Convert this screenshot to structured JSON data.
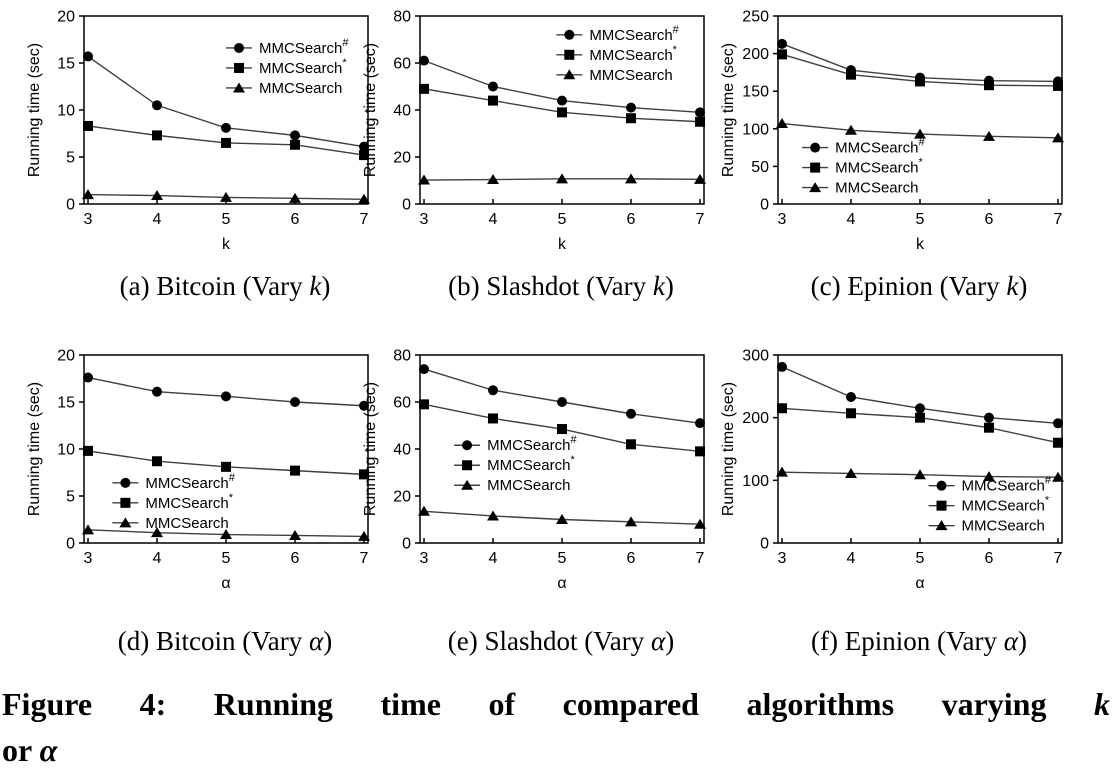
{
  "figure": {
    "title": {
      "line1_text": "Figure 4: Running time of compared algorithms varying",
      "line1_var": "k",
      "line2_text": "or",
      "line2_var": "α"
    }
  },
  "colors": {
    "line": "#3f3f3f",
    "marker": "#000000",
    "text": "#000000",
    "background": "#ffffff"
  },
  "chart_data": [
    {
      "id": "a",
      "type": "line",
      "caption": {
        "pre": "(a) Bitcoin (Vary ",
        "var": "k",
        "post": ")"
      },
      "xlabel": "k",
      "ylabel": "Running time (sec)",
      "x": [
        3,
        4,
        5,
        6,
        7
      ],
      "ylim": [
        0,
        20
      ],
      "yticks": [
        0,
        5,
        10,
        15,
        20
      ],
      "grid": false,
      "legend": {
        "position": "top-right",
        "fx": 0.5,
        "fy": 0.17
      },
      "series": [
        {
          "name": "MMCSearch#",
          "marker": "circle",
          "values": [
            15.7,
            10.5,
            8.1,
            7.3,
            6.1
          ]
        },
        {
          "name": "MMCSearch*",
          "marker": "square",
          "values": [
            8.3,
            7.3,
            6.5,
            6.3,
            5.2
          ]
        },
        {
          "name": "MMCSearch",
          "marker": "triangle",
          "values": [
            1.0,
            0.9,
            0.7,
            0.6,
            0.5
          ]
        }
      ]
    },
    {
      "id": "b",
      "type": "line",
      "caption": {
        "pre": "(b) Slashdot (Vary ",
        "var": "k",
        "post": ")"
      },
      "xlabel": "k",
      "ylabel": "Running time (sec)",
      "x": [
        3,
        4,
        5,
        6,
        7
      ],
      "ylim": [
        0,
        80
      ],
      "yticks": [
        0,
        20,
        40,
        60,
        80
      ],
      "grid": false,
      "legend": {
        "position": "top-right",
        "fx": 0.48,
        "fy": 0.1
      },
      "series": [
        {
          "name": "MMCSearch#",
          "marker": "circle",
          "values": [
            61,
            50,
            44,
            41,
            39
          ]
        },
        {
          "name": "MMCSearch*",
          "marker": "square",
          "values": [
            49,
            44,
            39,
            36.5,
            35
          ]
        },
        {
          "name": "MMCSearch",
          "marker": "triangle",
          "values": [
            10.2,
            10.4,
            10.7,
            10.7,
            10.5
          ]
        }
      ]
    },
    {
      "id": "c",
      "type": "line",
      "caption": {
        "pre": "(c) Epinion (Vary ",
        "var": "k",
        "post": ")"
      },
      "xlabel": "k",
      "ylabel": "Running time (sec)",
      "x": [
        3,
        4,
        5,
        6,
        7
      ],
      "ylim": [
        0,
        250
      ],
      "yticks": [
        0,
        50,
        100,
        150,
        200,
        250
      ],
      "grid": false,
      "legend": {
        "position": "bottom-left",
        "fx": 0.085,
        "fy": 0.7
      },
      "series": [
        {
          "name": "MMCSearch#",
          "marker": "circle",
          "values": [
            213,
            178,
            168,
            164,
            163
          ]
        },
        {
          "name": "MMCSearch*",
          "marker": "square",
          "values": [
            199,
            172,
            163,
            158,
            157
          ]
        },
        {
          "name": "MMCSearch",
          "marker": "triangle",
          "values": [
            107,
            98,
            93,
            90,
            88
          ]
        }
      ]
    },
    {
      "id": "d",
      "type": "line",
      "caption": {
        "pre": "(d) Bitcoin (Vary ",
        "var": "α",
        "post": ")"
      },
      "xlabel": "α",
      "ylabel": "Running time (sec)",
      "x": [
        3,
        4,
        5,
        6,
        7
      ],
      "ylim": [
        0,
        20
      ],
      "yticks": [
        0,
        5,
        10,
        15,
        20
      ],
      "grid": false,
      "legend": {
        "position": "mid-left",
        "fx": 0.1,
        "fy": 0.68
      },
      "series": [
        {
          "name": "MMCSearch#",
          "marker": "circle",
          "values": [
            17.6,
            16.1,
            15.6,
            15.0,
            14.6
          ]
        },
        {
          "name": "MMCSearch*",
          "marker": "square",
          "values": [
            9.8,
            8.7,
            8.1,
            7.7,
            7.3
          ]
        },
        {
          "name": "MMCSearch",
          "marker": "triangle",
          "values": [
            1.4,
            1.1,
            0.9,
            0.8,
            0.7
          ]
        }
      ]
    },
    {
      "id": "e",
      "type": "line",
      "caption": {
        "pre": "(e) Slashdot (Vary ",
        "var": "α",
        "post": ")"
      },
      "xlabel": "α",
      "ylabel": "Running time (sec)",
      "x": [
        3,
        4,
        5,
        6,
        7
      ],
      "ylim": [
        0,
        80
      ],
      "yticks": [
        0,
        20,
        40,
        60,
        80
      ],
      "grid": false,
      "legend": {
        "position": "mid-left",
        "fx": 0.12,
        "fy": 0.48
      },
      "series": [
        {
          "name": "MMCSearch#",
          "marker": "circle",
          "values": [
            74,
            65,
            60,
            55,
            51
          ]
        },
        {
          "name": "MMCSearch*",
          "marker": "square",
          "values": [
            59,
            53,
            48.5,
            42,
            39
          ]
        },
        {
          "name": "MMCSearch",
          "marker": "triangle",
          "values": [
            13.5,
            11.5,
            10,
            9,
            8
          ]
        }
      ]
    },
    {
      "id": "f",
      "type": "line",
      "caption": {
        "pre": "(f) Epinion (Vary ",
        "var": "α",
        "post": ")"
      },
      "xlabel": "α",
      "ylabel": "Running time (sec)",
      "x": [
        3,
        4,
        5,
        6,
        7
      ],
      "ylim": [
        0,
        300
      ],
      "yticks": [
        0,
        100,
        200,
        300
      ],
      "grid": false,
      "legend": {
        "position": "bottom-right",
        "fx": 0.53,
        "fy": 0.695
      },
      "series": [
        {
          "name": "MMCSearch#",
          "marker": "circle",
          "values": [
            281,
            233,
            215,
            200,
            191
          ]
        },
        {
          "name": "MMCSearch*",
          "marker": "square",
          "values": [
            215,
            207,
            200,
            184,
            160
          ]
        },
        {
          "name": "MMCSearch",
          "marker": "triangle",
          "values": [
            113,
            111,
            109,
            106,
            105
          ]
        }
      ]
    }
  ]
}
